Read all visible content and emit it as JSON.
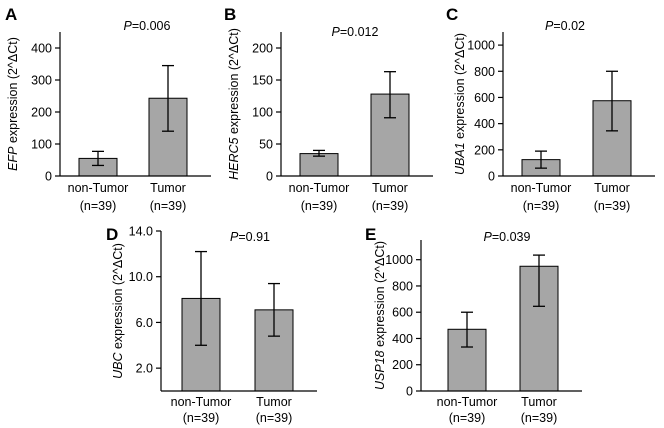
{
  "chart_data": [
    {
      "panel": "A",
      "type": "bar",
      "p_prefix": "P",
      "p_value": "=0.006",
      "gene": "EFP",
      "ylabel_suffix": " expression  (2^ΔCt)",
      "categories": [
        "non-Tumor",
        "Tumor"
      ],
      "n_labels": [
        "(n=39)",
        "(n=39)"
      ],
      "values": [
        55,
        243
      ],
      "error": [
        [
          33,
          77
        ],
        [
          140,
          345
        ]
      ],
      "ylim": [
        0,
        450
      ],
      "yticks": [
        0,
        100,
        200,
        300,
        400
      ],
      "ytick_labels": [
        "0",
        "100",
        "200",
        "300",
        "400"
      ],
      "bar_color": "#a6a6a6"
    },
    {
      "panel": "B",
      "type": "bar",
      "p_prefix": "P",
      "p_value": "=0.012",
      "gene": "HERC5",
      "ylabel_suffix": " expression  (2^ΔCt)",
      "categories": [
        "non-Tumor",
        "Tumor"
      ],
      "n_labels": [
        "(n=39)",
        "(n=39)"
      ],
      "values": [
        35,
        128
      ],
      "error": [
        [
          31,
          40
        ],
        [
          91,
          163
        ]
      ],
      "ylim": [
        0,
        225
      ],
      "yticks": [
        0,
        50,
        100,
        150,
        200
      ],
      "ytick_labels": [
        "0",
        "50",
        "100",
        "150",
        "200"
      ],
      "bar_color": "#a6a6a6"
    },
    {
      "panel": "C",
      "type": "bar",
      "p_prefix": "P",
      "p_value": "=0.02",
      "gene": "UBA1",
      "ylabel_suffix": " expression  (2^ΔCt)",
      "categories": [
        "non-Tumor",
        "Tumor"
      ],
      "n_labels": [
        "(n=39)",
        "(n=39)"
      ],
      "values": [
        125,
        575
      ],
      "error": [
        [
          60,
          190
        ],
        [
          345,
          800
        ]
      ],
      "ylim": [
        0,
        1100
      ],
      "yticks": [
        0,
        200,
        400,
        600,
        800,
        1000
      ],
      "ytick_labels": [
        "0",
        "200",
        "400",
        "600",
        "800",
        "1000"
      ],
      "bar_color": "#a6a6a6"
    },
    {
      "panel": "D",
      "type": "bar",
      "p_prefix": "P",
      "p_value": "=0.91",
      "gene": "UBC",
      "ylabel_suffix": " expression  (2^ΔCt)",
      "categories": [
        "non-Tumor",
        "Tumor"
      ],
      "n_labels": [
        "(n=39)",
        "(n=39)"
      ],
      "values": [
        8.1,
        7.1
      ],
      "error": [
        [
          4.0,
          12.2
        ],
        [
          4.8,
          9.4
        ]
      ],
      "ylim": [
        0,
        14.0
      ],
      "yticks": [
        2.0,
        6.0,
        10.0,
        14.0
      ],
      "ytick_labels": [
        "2.0",
        "6.0",
        "10.0",
        "14.0"
      ],
      "bar_color": "#a6a6a6"
    },
    {
      "panel": "E",
      "type": "bar",
      "p_prefix": "P",
      "p_value": "=0.039",
      "gene": "USP18",
      "ylabel_suffix": " expression  (2^ΔCt)",
      "categories": [
        "non-Tumor",
        "Tumor"
      ],
      "n_labels": [
        "(n=39)",
        "(n=39)"
      ],
      "values": [
        470,
        950
      ],
      "error": [
        [
          335,
          600
        ],
        [
          645,
          1035
        ]
      ],
      "ylim": [
        0,
        1150
      ],
      "yticks": [
        0,
        200,
        400,
        600,
        800,
        1000
      ],
      "ytick_labels": [
        "0",
        "200",
        "400",
        "600",
        "800",
        "1000"
      ],
      "bar_color": "#a6a6a6"
    }
  ]
}
